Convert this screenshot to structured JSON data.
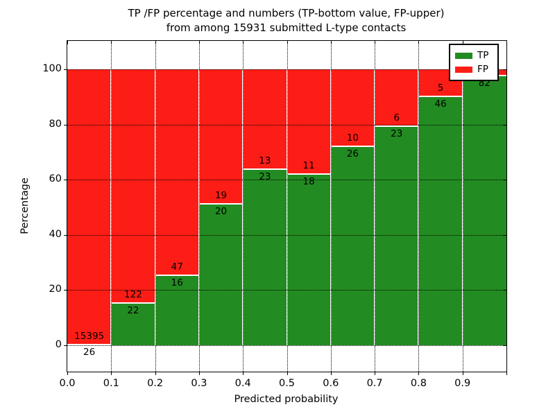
{
  "title": {
    "line1": "TP /FP percentage and numbers (TP-bottom value, FP-upper)",
    "line2": "from among 15931 submitted L-type contacts"
  },
  "chart_data": {
    "type": "bar",
    "stacked": true,
    "title": "TP /FP percentage and numbers (TP-bottom value, FP-upper) from among 15931 submitted L-type contacts",
    "xlabel": "Predicted probability",
    "ylabel": "Percentage",
    "xlim": [
      0.0,
      1.0
    ],
    "ylim": [
      -10,
      110
    ],
    "grid": true,
    "grid_style": "dotted",
    "legend_position": "upper right",
    "x_tick_labels": [
      "0.0",
      "0.1",
      "0.2",
      "0.3",
      "0.4",
      "0.5",
      "0.6",
      "0.7",
      "0.8",
      "0.9"
    ],
    "y_tick_values": [
      0,
      20,
      40,
      60,
      80,
      100
    ],
    "y_tick_labels": [
      "0",
      "20",
      "40",
      "60",
      "80",
      "100"
    ],
    "colors": {
      "tp": "#228b22",
      "fp": "#fc1d16"
    },
    "legend": [
      {
        "label": "TP",
        "color": "#228b22"
      },
      {
        "label": "FP",
        "color": "#fc1d16"
      }
    ],
    "total_submitted": 15931,
    "bins": [
      {
        "range": "0.0-0.1",
        "tp": 26,
        "fp": 15395,
        "tp_label": "26",
        "fp_label": "15395",
        "tp_percent": 0.17
      },
      {
        "range": "0.1-0.2",
        "tp": 22,
        "fp": 122,
        "tp_label": "22",
        "fp_label": "122",
        "tp_percent": 15.28
      },
      {
        "range": "0.2-0.3",
        "tp": 16,
        "fp": 47,
        "tp_label": "16",
        "fp_label": "47",
        "tp_percent": 25.4
      },
      {
        "range": "0.3-0.4",
        "tp": 20,
        "fp": 19,
        "tp_label": "20",
        "fp_label": "19",
        "tp_percent": 51.28
      },
      {
        "range": "0.4-0.5",
        "tp": 23,
        "fp": 13,
        "tp_label": "23",
        "fp_label": "13",
        "tp_percent": 63.89
      },
      {
        "range": "0.5-0.6",
        "tp": 18,
        "fp": 11,
        "tp_label": "18",
        "fp_label": "11",
        "tp_percent": 62.07
      },
      {
        "range": "0.6-0.7",
        "tp": 26,
        "fp": 10,
        "tp_label": "26",
        "fp_label": "10",
        "tp_percent": 72.22
      },
      {
        "range": "0.7-0.8",
        "tp": 23,
        "fp": 6,
        "tp_label": "23",
        "fp_label": "6",
        "tp_percent": 79.31
      },
      {
        "range": "0.8-0.9",
        "tp": 46,
        "fp": 5,
        "tp_label": "46",
        "fp_label": "5",
        "tp_percent": 90.2
      },
      {
        "range": "0.9-1.0",
        "tp": 82,
        "fp": null,
        "tp_label": "82",
        "fp_label": "",
        "tp_percent": 97.62
      }
    ]
  }
}
